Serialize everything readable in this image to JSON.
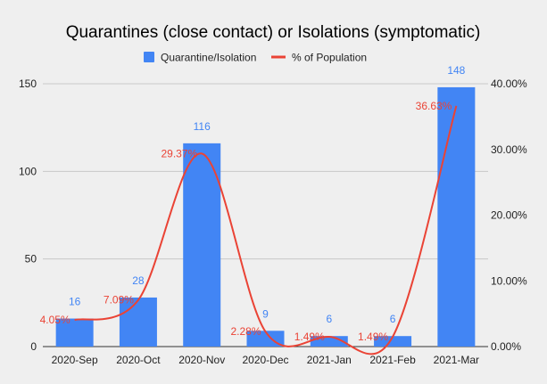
{
  "chart_data": {
    "type": "bar",
    "title": "Quarantines (close contact) or Isolations (symptomatic)",
    "categories": [
      "2020-Sep",
      "2020-Oct",
      "2020-Nov",
      "2020-Dec",
      "2021-Jan",
      "2021-Feb",
      "2021-Mar"
    ],
    "series": [
      {
        "name": "Quarantine/Isolation",
        "type": "bar",
        "axis": "left",
        "color": "#4285f4",
        "values": [
          16,
          28,
          116,
          9,
          6,
          6,
          148
        ],
        "labels": [
          "16",
          "28",
          "116",
          "9",
          "6",
          "6",
          "148"
        ]
      },
      {
        "name": "% of Population",
        "type": "line",
        "smooth": true,
        "axis": "right",
        "color": "#ea4335",
        "values": [
          4.05,
          7.09,
          29.37,
          2.28,
          1.49,
          1.49,
          36.63
        ],
        "labels": [
          "4.05%",
          "7.09%",
          "29.37%",
          "2.28%",
          "1.49%",
          "1.49%",
          "36.63%"
        ]
      }
    ],
    "y_left": {
      "min": 0,
      "max": 150,
      "ticks": [
        0,
        50,
        100,
        150
      ],
      "tick_labels": [
        "0",
        "50",
        "100",
        "150"
      ]
    },
    "y_right": {
      "min": 0,
      "max": 40,
      "ticks": [
        0,
        10,
        20,
        30,
        40
      ],
      "tick_labels": [
        "0.00%",
        "10.00%",
        "20.00%",
        "30.00%",
        "40.00%"
      ]
    },
    "grid": true,
    "legend_position": "top",
    "background": "#efefef"
  }
}
